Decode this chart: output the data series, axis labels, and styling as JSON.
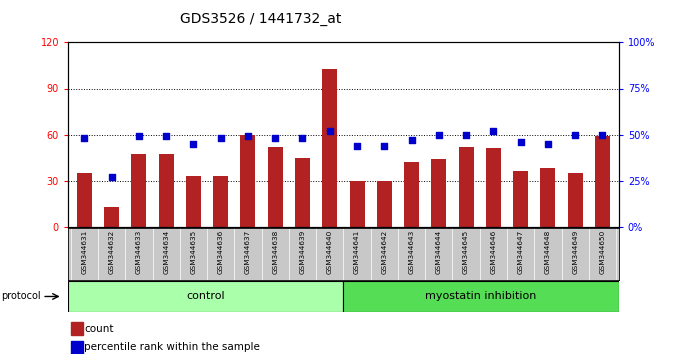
{
  "title": "GDS3526 / 1441732_at",
  "samples": [
    "GSM344631",
    "GSM344632",
    "GSM344633",
    "GSM344634",
    "GSM344635",
    "GSM344636",
    "GSM344637",
    "GSM344638",
    "GSM344639",
    "GSM344640",
    "GSM344641",
    "GSM344642",
    "GSM344643",
    "GSM344644",
    "GSM344645",
    "GSM344646",
    "GSM344647",
    "GSM344648",
    "GSM344649",
    "GSM344650"
  ],
  "bar_values": [
    35,
    13,
    47,
    47,
    33,
    33,
    60,
    52,
    45,
    103,
    30,
    30,
    42,
    44,
    52,
    51,
    36,
    38,
    35,
    59
  ],
  "percentile_values": [
    48,
    27,
    49,
    49,
    45,
    48,
    49,
    48,
    48,
    52,
    44,
    44,
    47,
    50,
    50,
    52,
    46,
    45,
    50,
    50
  ],
  "control_count": 10,
  "myostatin_count": 10,
  "bar_color": "#B22222",
  "dot_color": "#0000CC",
  "control_color": "#AAFFAA",
  "myostatin_color": "#55DD55",
  "bg_color": "#C8C8C8",
  "left_ylim": [
    0,
    120
  ],
  "right_ylim": [
    0,
    100
  ],
  "left_yticks": [
    0,
    30,
    60,
    90,
    120
  ],
  "right_yticks": [
    0,
    25,
    50,
    75,
    100
  ],
  "right_yticklabels": [
    "0%",
    "25%",
    "50%",
    "75%",
    "100%"
  ],
  "grid_values": [
    30,
    60,
    90
  ],
  "title_fontsize": 10,
  "tick_fontsize": 7,
  "label_fontsize": 8
}
